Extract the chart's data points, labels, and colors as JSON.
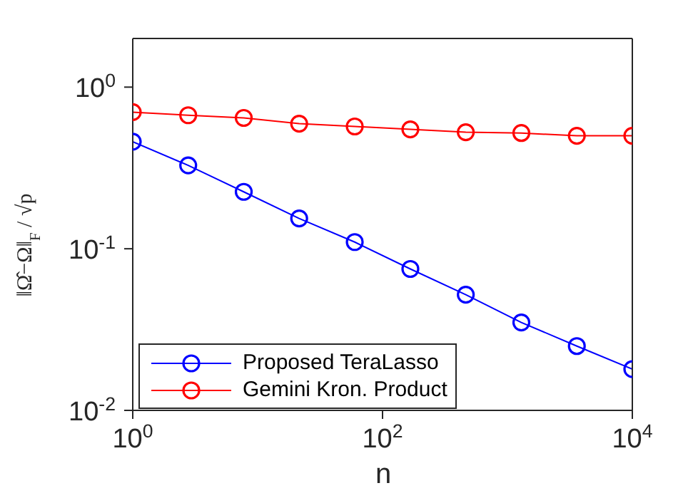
{
  "chart_data": {
    "type": "line",
    "xlabel": "n",
    "ylabel": "‖Ω̂−Ω‖$_{F}$ / √p",
    "x": [
      1,
      2.78,
      7.74,
      21.5,
      59.9,
      167,
      464,
      1292,
      3594,
      10000
    ],
    "series": [
      {
        "name": "Proposed TeraLasso",
        "color": "#0000ff",
        "values": [
          0.46,
          0.328,
          0.225,
          0.154,
          0.11,
          0.075,
          0.052,
          0.035,
          0.025,
          0.018
        ]
      },
      {
        "name": "Gemini Kron. Product",
        "color": "#ff0000",
        "values": [
          0.7,
          0.67,
          0.645,
          0.594,
          0.571,
          0.548,
          0.526,
          0.52,
          0.5,
          0.5
        ]
      }
    ],
    "log": "xy",
    "xlim": [
      1,
      10000
    ],
    "ylim": [
      0.01,
      2
    ],
    "xticks": [
      {
        "value": 1,
        "label": "10$^{0}$"
      },
      {
        "value": 100,
        "label": "10$^{2}$"
      },
      {
        "value": 10000,
        "label": "10$^{4}$"
      }
    ],
    "yticks": [
      {
        "value": 0.01,
        "label": "10$^{-2}$"
      },
      {
        "value": 0.1,
        "label": "10$^{-1}$"
      },
      {
        "value": 1,
        "label": "10$^{0}$"
      }
    ],
    "marker": "circle",
    "line_style": "solid",
    "grid": false,
    "legend": "bottom left"
  }
}
